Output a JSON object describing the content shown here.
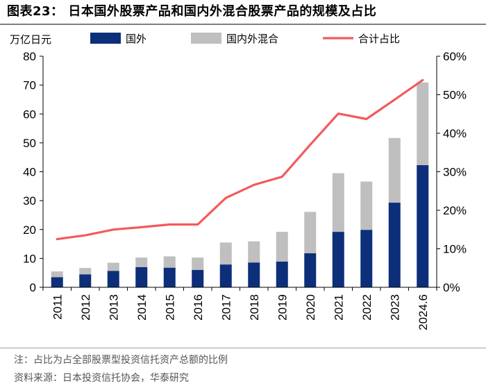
{
  "header": {
    "title": "图表23：  日本国外股票产品和国内外混合股票产品的规模及占比"
  },
  "footer": {
    "note": "注：占比为占全部股票型投资信托资产总额的比例",
    "source": "资料来源：日本投资信托协会，华泰研究"
  },
  "chart_data": {
    "type": "bar",
    "stacked": true,
    "title": "日本国外股票产品和国内外混合股票产品的规模及占比",
    "ylabel": "万亿日元",
    "categories": [
      "2011",
      "2012",
      "2013",
      "2014",
      "2015",
      "2016",
      "2017",
      "2018",
      "2019",
      "2020",
      "2021",
      "2022",
      "2023",
      "2024.6"
    ],
    "ylim": [
      0,
      80
    ],
    "yticks": [
      "0",
      "10",
      "20",
      "30",
      "40",
      "50",
      "60",
      "70",
      "80"
    ],
    "y2lim": [
      0,
      60
    ],
    "y2ticks": [
      "0%",
      "10%",
      "20%",
      "30%",
      "40%",
      "50%",
      "60%"
    ],
    "series": [
      {
        "name": "国外",
        "axis": "left",
        "kind": "bar",
        "color": "#0d2f7a",
        "values": [
          3.5,
          4.5,
          5.7,
          7.0,
          6.8,
          6.0,
          7.9,
          8.6,
          8.9,
          11.8,
          19.2,
          19.9,
          29.3,
          42.3
        ]
      },
      {
        "name": "国内外混合",
        "axis": "left",
        "kind": "bar",
        "color": "#bfbfbf",
        "values": [
          2.0,
          2.2,
          2.8,
          3.3,
          3.9,
          4.3,
          7.6,
          7.3,
          10.3,
          14.3,
          20.3,
          16.7,
          22.4,
          28.6
        ]
      },
      {
        "name": "合计占比",
        "axis": "right",
        "kind": "line",
        "color": "#f4595b",
        "values": [
          12.5,
          13.5,
          15.0,
          15.6,
          16.3,
          16.3,
          23.2,
          26.6,
          28.7,
          37.0,
          45.1,
          43.7,
          48.7,
          53.8
        ]
      }
    ],
    "legend_position": "top"
  }
}
